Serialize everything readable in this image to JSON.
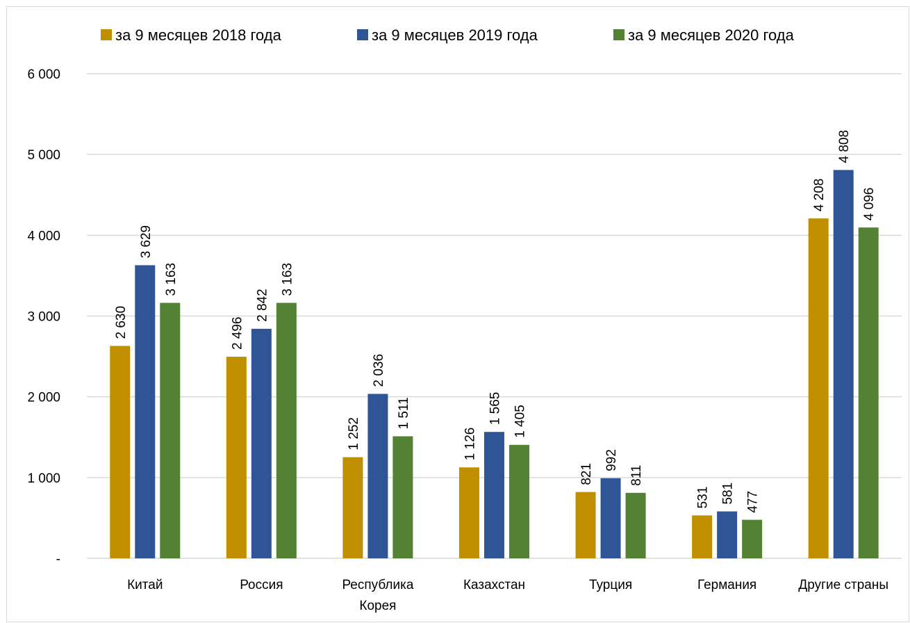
{
  "chart_data": {
    "type": "bar",
    "categories": [
      [
        "Китай"
      ],
      [
        "Россия"
      ],
      [
        "Республика",
        "Корея"
      ],
      [
        "Казахстан"
      ],
      [
        "Турция"
      ],
      [
        "Германия"
      ],
      [
        "Другие страны"
      ]
    ],
    "series": [
      {
        "name": "за 9 месяцев 2018 года",
        "color": "#bf8f00",
        "values": [
          2630,
          2496,
          1252,
          1126,
          821,
          531,
          4208
        ],
        "labels": [
          "2 630",
          "2 496",
          "1 252",
          "1 126",
          "821",
          "531",
          "4 208"
        ]
      },
      {
        "name": "за 9 месяцев 2019 года",
        "color": "#2f5597",
        "values": [
          3629,
          2842,
          2036,
          1565,
          992,
          581,
          4808
        ],
        "labels": [
          "3 629",
          "2 842",
          "2 036",
          "1 565",
          "992",
          "581",
          "4 808"
        ]
      },
      {
        "name": "за 9 месяцев 2020 года",
        "color": "#548235",
        "values": [
          3163,
          3163,
          1511,
          1405,
          811,
          477,
          4096
        ],
        "labels": [
          "3 163",
          "3 163",
          "1 511",
          "1 405",
          "811",
          "477",
          "4 096"
        ]
      }
    ],
    "y_ticks": [
      {
        "value": 0,
        "label": "-"
      },
      {
        "value": 1000,
        "label": "1 000"
      },
      {
        "value": 2000,
        "label": "2 000"
      },
      {
        "value": 3000,
        "label": "3 000"
      },
      {
        "value": 4000,
        "label": "4 000"
      },
      {
        "value": 5000,
        "label": "5 000"
      },
      {
        "value": 6000,
        "label": "6 000"
      }
    ],
    "ylim": [
      0,
      6000
    ],
    "grid": true,
    "legend_position": "top",
    "data_labels_rotated": true,
    "gridline_color": "#d9d9d9"
  }
}
